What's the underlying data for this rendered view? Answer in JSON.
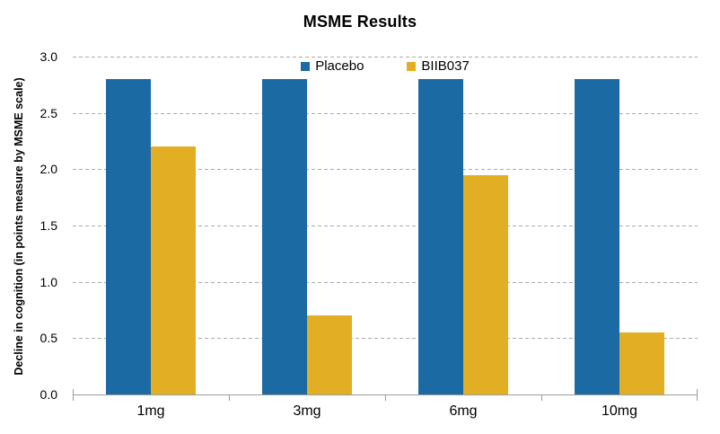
{
  "chart_data": {
    "type": "bar",
    "title": "MSME Results",
    "ylabel": "Decline in cognition (in points measure by MSME scale)",
    "xlabel": "",
    "categories": [
      "1mg",
      "3mg",
      "6mg",
      "10mg"
    ],
    "series": [
      {
        "name": "Placebo",
        "color": "#1b6aa3",
        "values": [
          2.8,
          2.8,
          2.8,
          2.8
        ]
      },
      {
        "name": "BIIB037",
        "color": "#e1ae24",
        "values": [
          2.2,
          0.7,
          1.95,
          0.55
        ]
      }
    ],
    "ylim": [
      0,
      3.0
    ],
    "ytick_step": 0.5,
    "ytick_labels": [
      "0.0",
      "0.5",
      "1.0",
      "1.5",
      "2.0",
      "2.5",
      "3.0"
    ],
    "grid": "horizontal-dashed",
    "legend_position": "top-center-inside-plot"
  },
  "colors": {
    "background": "#ffffff",
    "gridline": "#aaaaaa",
    "axis": "#9b9b9b",
    "text": "#000000"
  }
}
